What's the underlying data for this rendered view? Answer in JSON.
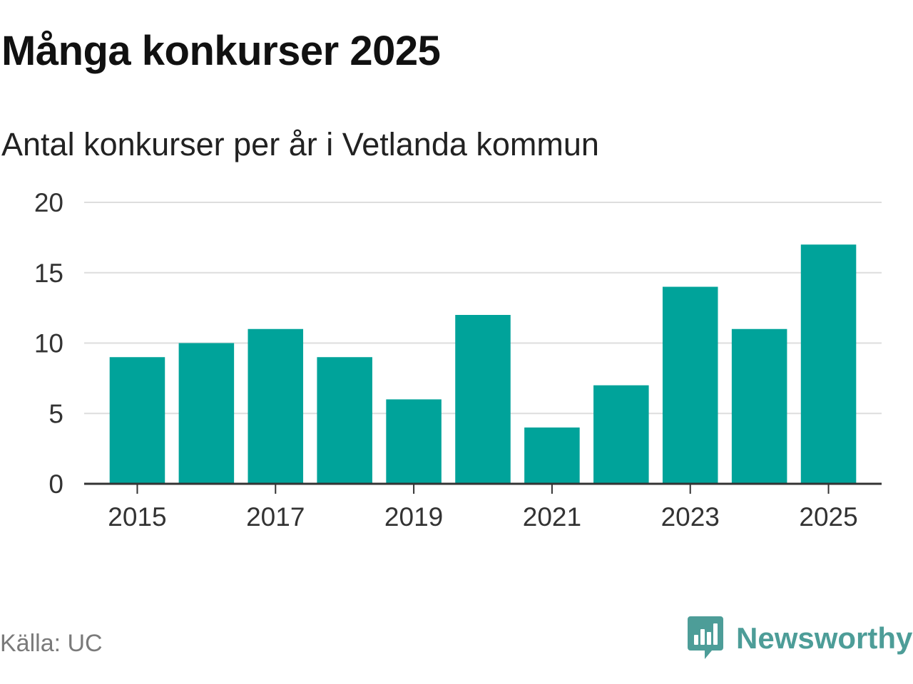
{
  "header": {
    "title": "Många konkurser 2025",
    "subtitle": "Antal konkurser per år i Vetlanda kommun"
  },
  "footer": {
    "source": "Källa: UC",
    "brand": "Newsworthy",
    "brand_icon": "newsworthy-logo-icon"
  },
  "colors": {
    "bar": "#00a39a",
    "grid": "#dddddd",
    "axis": "#333333",
    "brand": "#4d9d98"
  },
  "chart_data": {
    "type": "bar",
    "title": "Många konkurser 2025",
    "subtitle": "Antal konkurser per år i Vetlanda kommun",
    "categories": [
      "2015",
      "2016",
      "2017",
      "2018",
      "2019",
      "2020",
      "2021",
      "2022",
      "2023",
      "2024",
      "2025"
    ],
    "values": [
      9,
      10,
      11,
      9,
      6,
      12,
      4,
      7,
      14,
      11,
      17
    ],
    "x_tick_labels": [
      "2015",
      "2017",
      "2019",
      "2021",
      "2023",
      "2025"
    ],
    "y_ticks": [
      0,
      5,
      10,
      15,
      20
    ],
    "ylim": [
      0,
      20
    ],
    "xlabel": "",
    "ylabel": "",
    "grid": true,
    "legend": false
  }
}
